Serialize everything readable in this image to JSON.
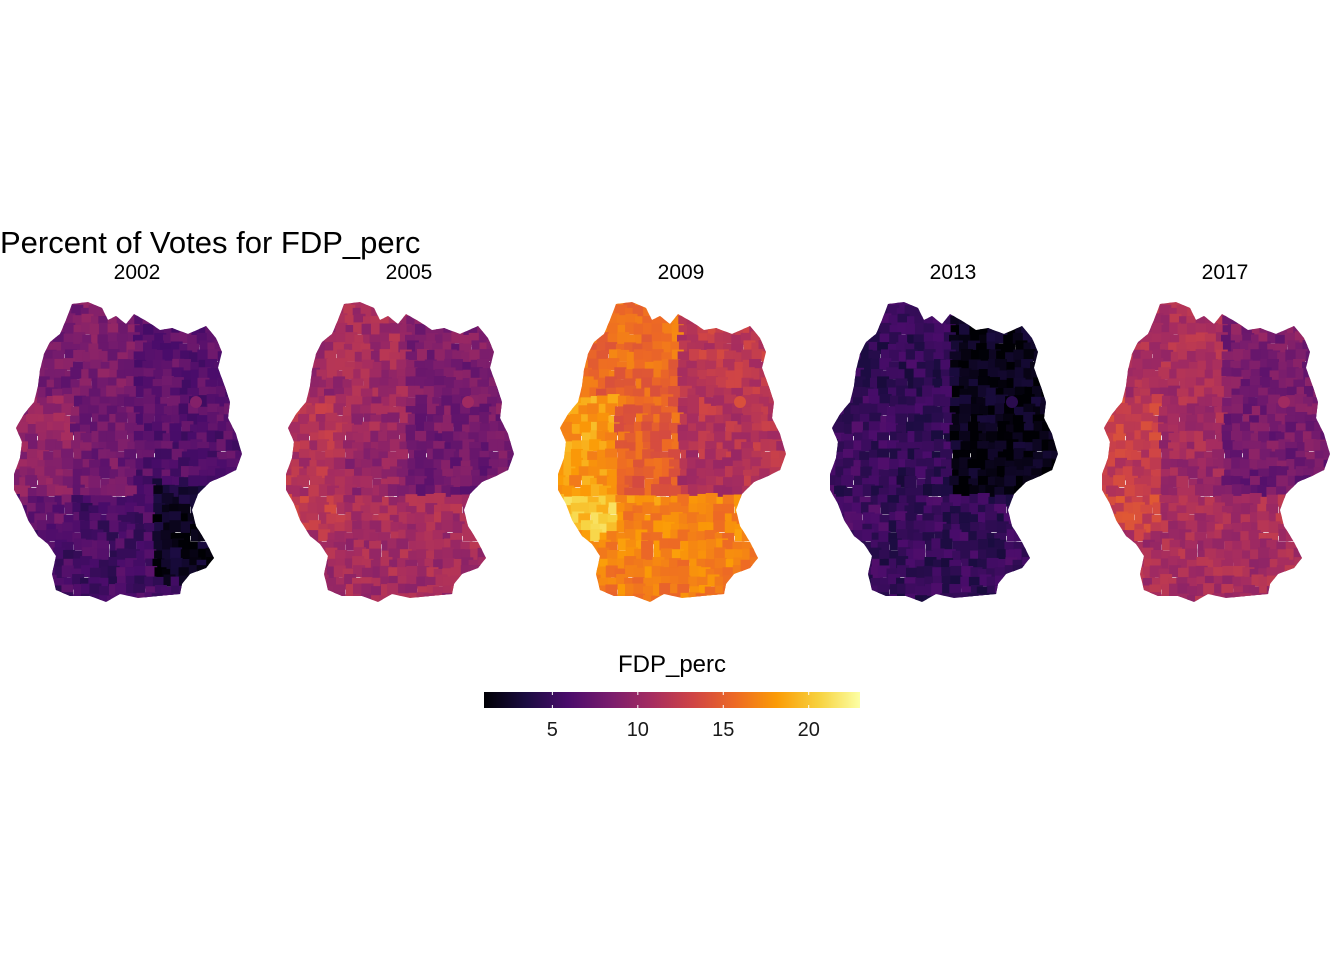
{
  "title": "Percent of Votes for FDP_perc",
  "legend": {
    "title": "FDP_perc",
    "min": 1,
    "max": 23,
    "ticks": [
      "5",
      "10",
      "15",
      "20"
    ],
    "colors": [
      "#000004",
      "#1b0c41",
      "#4a0c6b",
      "#781c6d",
      "#a52c60",
      "#cf4446",
      "#ed6925",
      "#fb9b06",
      "#f7d13d",
      "#fcffa4"
    ]
  },
  "panels": [
    {
      "label": "2002",
      "base": 8.0,
      "nw_gradient": 0.6,
      "east_offset": -1.5,
      "south_offset": -2.0,
      "bavaria_offset": -3.5,
      "west_offset": 1.5
    },
    {
      "label": "2005",
      "base": 10.0,
      "nw_gradient": 0.8,
      "east_offset": -2.0,
      "south_offset": 1.2,
      "bavaria_offset": 0.0,
      "west_offset": 1.5
    },
    {
      "label": "2009",
      "base": 15.0,
      "nw_gradient": 1.0,
      "east_offset": -3.5,
      "south_offset": 2.5,
      "bavaria_offset": 0.0,
      "west_offset": 3.0
    },
    {
      "label": "2013",
      "base": 4.5,
      "nw_gradient": 0.3,
      "east_offset": -2.8,
      "south_offset": 0.5,
      "bavaria_offset": 0.0,
      "west_offset": 0.5
    },
    {
      "label": "2017",
      "base": 10.5,
      "nw_gradient": 0.8,
      "east_offset": -2.5,
      "south_offset": 1.0,
      "bavaria_offset": 0.0,
      "west_offset": 2.0
    }
  ]
}
